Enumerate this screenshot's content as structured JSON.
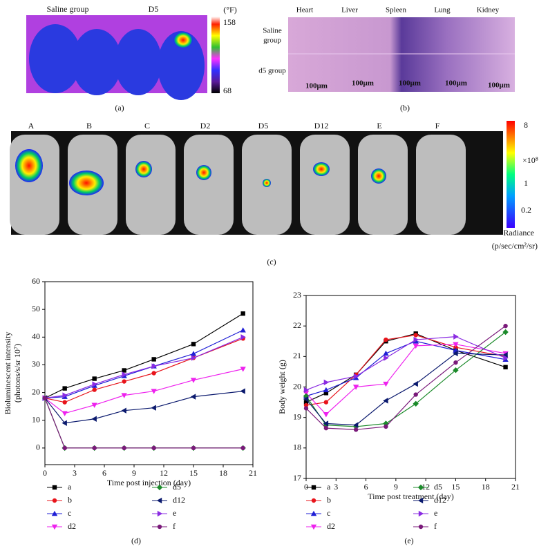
{
  "panel_a": {
    "labels": [
      "Saline group",
      "D5"
    ],
    "unit": "(°F)",
    "scale_max": 158,
    "scale_min": 68,
    "caption": "(a)"
  },
  "panel_b": {
    "columns": [
      "Heart",
      "Liver",
      "Spleen",
      "Lung",
      "Kidney"
    ],
    "row_1": [
      "Saline",
      "group"
    ],
    "row_2": "d5 group",
    "scale_bars": [
      "100μm",
      "100μm",
      "100μm",
      "100μm",
      "100μm"
    ],
    "caption": "(b)"
  },
  "panel_c": {
    "labels": [
      "A",
      "B",
      "C",
      "D2",
      "D5",
      "D12",
      "E",
      "F"
    ],
    "scale": {
      "top": 8,
      "multiplier": "×10⁸",
      "mid": 1,
      "low": 0.2,
      "title": "Radiance",
      "unit": "(p/sec/cm²/sr)"
    },
    "caption": "(c)"
  },
  "chart_data": [
    {
      "type": "line",
      "caption": "(d)",
      "ylabel": [
        "Bioluminescent intensity",
        "(photons/s/sr 10⁷)"
      ],
      "xlabel": "Time post injection (day)",
      "x": [
        0,
        2,
        5,
        8,
        11,
        15,
        20
      ],
      "xlim": [
        0,
        21
      ],
      "xticks": [
        0,
        3,
        6,
        9,
        12,
        15,
        18,
        21
      ],
      "ylim": [
        -6,
        60
      ],
      "yticks": [
        0,
        10,
        20,
        30,
        40,
        50,
        60
      ],
      "series": [
        {
          "name": "a",
          "color": "#000000",
          "marker": "square",
          "values": [
            18,
            21.5,
            25,
            28,
            32,
            37.5,
            48.5
          ]
        },
        {
          "name": "b",
          "color": "#e8141b",
          "marker": "circle",
          "values": [
            18,
            16.5,
            21,
            24,
            27,
            32.5,
            39.5
          ]
        },
        {
          "name": "c",
          "color": "#1f1fd6",
          "marker": "up",
          "values": [
            18,
            18.5,
            22.5,
            26,
            29.5,
            34,
            42.5
          ]
        },
        {
          "name": "d2",
          "color": "#ee22ee",
          "marker": "down",
          "values": [
            18,
            12.5,
            15.5,
            19,
            20.5,
            24.5,
            28.5
          ]
        },
        {
          "name": "d5",
          "color": "#1b8a2a",
          "marker": "diamond",
          "values": [
            18,
            0,
            0,
            0,
            0,
            0,
            0
          ]
        },
        {
          "name": "d12",
          "color": "#0b1a6e",
          "marker": "left",
          "values": [
            18,
            9,
            10.5,
            13.5,
            14.5,
            18.5,
            20.5
          ]
        },
        {
          "name": "e",
          "color": "#8a2be2",
          "marker": "right",
          "values": [
            18,
            19,
            23,
            26.5,
            29.5,
            32.5,
            40
          ]
        },
        {
          "name": "f",
          "color": "#7a1a7a",
          "marker": "circle",
          "values": [
            18,
            0,
            0,
            0,
            0,
            0,
            0
          ]
        }
      ]
    },
    {
      "type": "line",
      "caption": "(e)",
      "ylabel": [
        "Body weight (g)"
      ],
      "xlabel": "Time post treatment (day)",
      "x": [
        0,
        2,
        5,
        8,
        11,
        15,
        20
      ],
      "xlim": [
        0,
        21
      ],
      "xticks": [
        0,
        3,
        6,
        9,
        12,
        15,
        18,
        21
      ],
      "ylim": [
        17,
        23
      ],
      "yticks": [
        17,
        18,
        19,
        20,
        21,
        22,
        23
      ],
      "series": [
        {
          "name": "a",
          "color": "#000000",
          "marker": "square",
          "values": [
            19.5,
            19.8,
            20.4,
            21.5,
            21.75,
            21.2,
            20.65
          ]
        },
        {
          "name": "b",
          "color": "#e8141b",
          "marker": "circle",
          "values": [
            19.4,
            19.5,
            20.4,
            21.55,
            21.7,
            21.3,
            21.0
          ]
        },
        {
          "name": "c",
          "color": "#1f1fd6",
          "marker": "up",
          "values": [
            19.7,
            19.9,
            20.3,
            21.1,
            21.5,
            21.2,
            20.9
          ]
        },
        {
          "name": "d2",
          "color": "#ee22ee",
          "marker": "down",
          "values": [
            19.8,
            19.1,
            20.0,
            20.1,
            21.35,
            21.4,
            21.1
          ]
        },
        {
          "name": "d5",
          "color": "#1b8a2a",
          "marker": "diamond",
          "values": [
            19.7,
            18.75,
            18.7,
            18.8,
            19.45,
            20.55,
            21.8
          ]
        },
        {
          "name": "d12",
          "color": "#0b1a6e",
          "marker": "left",
          "values": [
            19.6,
            18.8,
            18.75,
            19.55,
            20.1,
            21.1,
            21.05
          ]
        },
        {
          "name": "e",
          "color": "#8a2be2",
          "marker": "right",
          "values": [
            19.9,
            20.15,
            20.35,
            20.95,
            21.55,
            21.65,
            20.95
          ]
        },
        {
          "name": "f",
          "color": "#7a1a7a",
          "marker": "circle",
          "values": [
            19.3,
            18.65,
            18.6,
            18.7,
            19.75,
            20.8,
            22.0
          ]
        }
      ]
    }
  ]
}
